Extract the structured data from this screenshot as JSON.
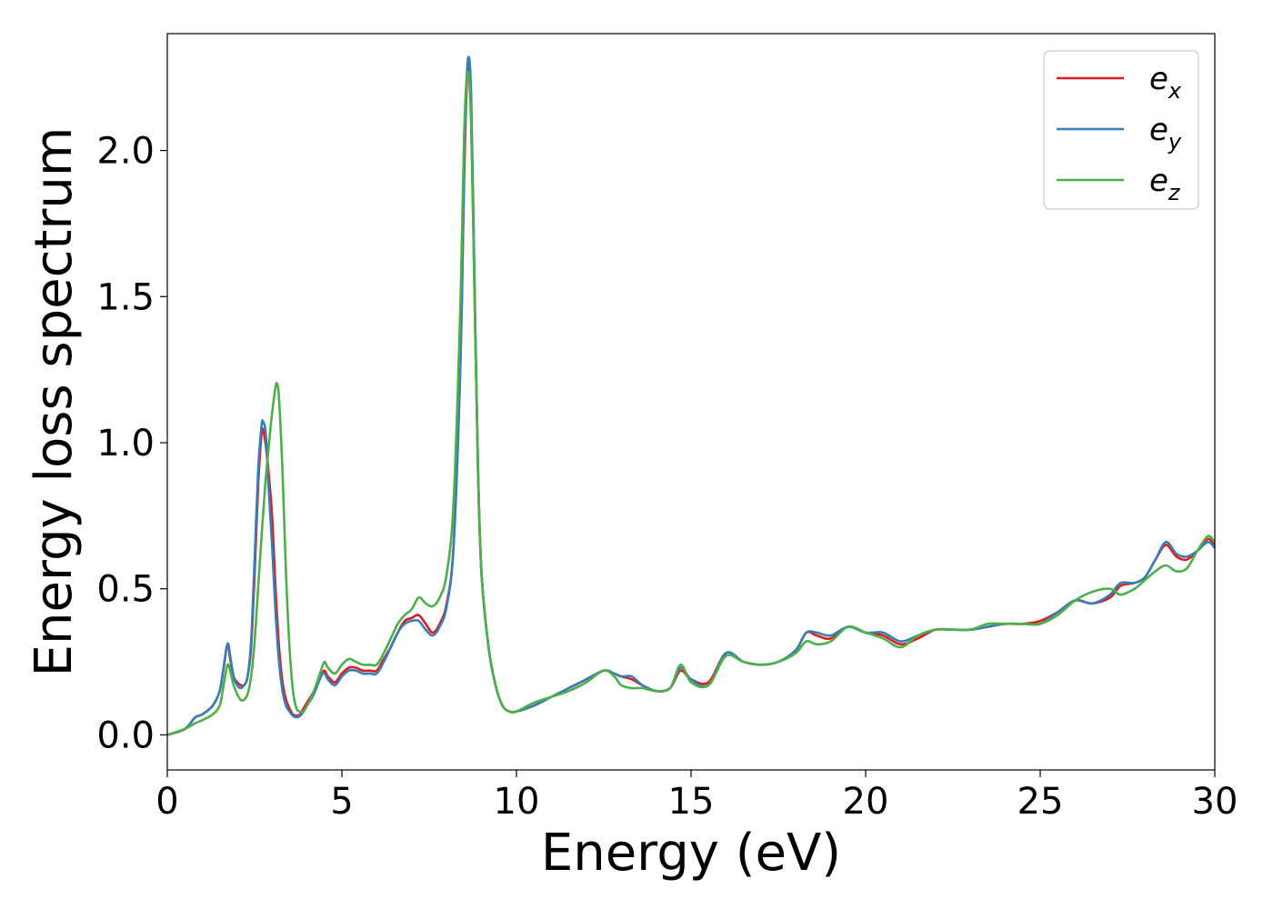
{
  "chart_data": {
    "type": "line",
    "xlabel": "Energy (eV)",
    "ylabel": "Energy loss spectrum",
    "xlim": [
      0,
      30
    ],
    "ylim": [
      -0.12,
      2.4
    ],
    "xticks": [
      0,
      5,
      10,
      15,
      20,
      25,
      30
    ],
    "xtick_labels": [
      "0",
      "5",
      "10",
      "15",
      "20",
      "25",
      "30"
    ],
    "yticks": [
      0.0,
      0.5,
      1.0,
      1.5,
      2.0
    ],
    "ytick_labels": [
      "0.0",
      "0.5",
      "1.0",
      "1.5",
      "2.0"
    ],
    "grid": false,
    "legend_position": "top-right",
    "series": [
      {
        "name": "e_x",
        "label_base": "e",
        "label_sub": "x",
        "color": "#e41a1c",
        "x": [
          0,
          0.5,
          0.8,
          1.0,
          1.3,
          1.5,
          1.6,
          1.7,
          1.75,
          1.8,
          1.9,
          2.0,
          2.1,
          2.2,
          2.3,
          2.4,
          2.5,
          2.6,
          2.7,
          2.75,
          2.8,
          2.85,
          2.9,
          3.0,
          3.1,
          3.2,
          3.3,
          3.4,
          3.5,
          3.6,
          3.7,
          3.8,
          3.9,
          4.0,
          4.2,
          4.4,
          4.5,
          4.6,
          4.8,
          5.0,
          5.2,
          5.4,
          5.6,
          5.8,
          6.0,
          6.2,
          6.4,
          6.6,
          6.8,
          7.0,
          7.2,
          7.4,
          7.6,
          7.8,
          8.0,
          8.2,
          8.4,
          8.5,
          8.6,
          8.7,
          8.8,
          8.9,
          9.0,
          9.2,
          9.4,
          9.6,
          9.8,
          10.0,
          10.5,
          11.0,
          11.5,
          12.0,
          12.5,
          12.8,
          13.0,
          13.3,
          13.6,
          14.0,
          14.4,
          14.7,
          15.0,
          15.5,
          16.0,
          16.5,
          17.0,
          17.5,
          18.0,
          18.3,
          18.6,
          19.0,
          19.5,
          20.0,
          20.5,
          21.0,
          21.5,
          22.0,
          22.5,
          23.0,
          23.5,
          24.0,
          24.5,
          25.0,
          25.5,
          26.0,
          26.5,
          27.0,
          27.3,
          27.7,
          28.0,
          28.3,
          28.6,
          28.9,
          29.2,
          29.5,
          29.8,
          30.0
        ],
        "y": [
          0.0,
          0.02,
          0.06,
          0.07,
          0.1,
          0.15,
          0.22,
          0.3,
          0.3,
          0.26,
          0.2,
          0.18,
          0.17,
          0.17,
          0.2,
          0.3,
          0.55,
          0.85,
          1.03,
          1.04,
          1.01,
          0.96,
          0.9,
          0.75,
          0.5,
          0.3,
          0.18,
          0.12,
          0.09,
          0.07,
          0.065,
          0.07,
          0.09,
          0.11,
          0.15,
          0.2,
          0.22,
          0.2,
          0.18,
          0.21,
          0.23,
          0.23,
          0.22,
          0.22,
          0.22,
          0.26,
          0.3,
          0.35,
          0.39,
          0.4,
          0.41,
          0.38,
          0.35,
          0.38,
          0.45,
          0.65,
          1.3,
          1.9,
          2.28,
          2.15,
          1.5,
          0.9,
          0.55,
          0.3,
          0.17,
          0.1,
          0.08,
          0.08,
          0.1,
          0.13,
          0.16,
          0.19,
          0.22,
          0.21,
          0.2,
          0.19,
          0.17,
          0.15,
          0.16,
          0.22,
          0.19,
          0.18,
          0.28,
          0.25,
          0.24,
          0.25,
          0.29,
          0.35,
          0.34,
          0.33,
          0.37,
          0.35,
          0.34,
          0.31,
          0.33,
          0.36,
          0.36,
          0.36,
          0.37,
          0.38,
          0.38,
          0.39,
          0.42,
          0.46,
          0.45,
          0.47,
          0.51,
          0.52,
          0.54,
          0.6,
          0.65,
          0.61,
          0.6,
          0.63,
          0.67,
          0.65
        ]
      },
      {
        "name": "e_y",
        "label_base": "e",
        "label_sub": "y",
        "color": "#377eb8",
        "x": [
          0,
          0.5,
          0.8,
          1.0,
          1.3,
          1.5,
          1.6,
          1.7,
          1.75,
          1.8,
          1.9,
          2.0,
          2.1,
          2.2,
          2.3,
          2.4,
          2.5,
          2.6,
          2.7,
          2.75,
          2.8,
          2.85,
          2.9,
          3.0,
          3.1,
          3.2,
          3.3,
          3.4,
          3.5,
          3.6,
          3.7,
          3.8,
          3.9,
          4.0,
          4.2,
          4.4,
          4.5,
          4.6,
          4.8,
          5.0,
          5.2,
          5.4,
          5.6,
          5.8,
          6.0,
          6.2,
          6.4,
          6.6,
          6.8,
          7.0,
          7.2,
          7.4,
          7.6,
          7.8,
          8.0,
          8.2,
          8.4,
          8.5,
          8.6,
          8.7,
          8.8,
          8.9,
          9.0,
          9.2,
          9.4,
          9.6,
          9.8,
          10.0,
          10.5,
          11.0,
          11.5,
          12.0,
          12.5,
          12.8,
          13.0,
          13.3,
          13.6,
          14.0,
          14.4,
          14.7,
          15.0,
          15.5,
          16.0,
          16.5,
          17.0,
          17.5,
          18.0,
          18.3,
          18.6,
          19.0,
          19.5,
          20.0,
          20.5,
          21.0,
          21.5,
          22.0,
          22.5,
          23.0,
          23.5,
          24.0,
          24.5,
          25.0,
          25.5,
          26.0,
          26.5,
          27.0,
          27.3,
          27.7,
          28.0,
          28.3,
          28.6,
          28.9,
          29.2,
          29.5,
          29.8,
          30.0
        ],
        "y": [
          0.0,
          0.02,
          0.06,
          0.07,
          0.1,
          0.15,
          0.22,
          0.3,
          0.31,
          0.27,
          0.2,
          0.17,
          0.16,
          0.17,
          0.2,
          0.32,
          0.6,
          0.9,
          1.06,
          1.07,
          1.05,
          0.98,
          0.85,
          0.65,
          0.42,
          0.25,
          0.15,
          0.1,
          0.08,
          0.065,
          0.06,
          0.065,
          0.08,
          0.1,
          0.14,
          0.2,
          0.21,
          0.19,
          0.17,
          0.2,
          0.22,
          0.22,
          0.21,
          0.21,
          0.21,
          0.25,
          0.3,
          0.35,
          0.38,
          0.39,
          0.39,
          0.36,
          0.34,
          0.37,
          0.44,
          0.65,
          1.3,
          1.95,
          2.3,
          2.2,
          1.55,
          0.9,
          0.55,
          0.3,
          0.17,
          0.1,
          0.08,
          0.08,
          0.1,
          0.13,
          0.16,
          0.19,
          0.22,
          0.21,
          0.2,
          0.2,
          0.17,
          0.15,
          0.16,
          0.23,
          0.19,
          0.17,
          0.28,
          0.25,
          0.24,
          0.25,
          0.29,
          0.35,
          0.35,
          0.34,
          0.37,
          0.35,
          0.35,
          0.32,
          0.34,
          0.36,
          0.36,
          0.36,
          0.37,
          0.38,
          0.38,
          0.38,
          0.42,
          0.46,
          0.45,
          0.48,
          0.52,
          0.52,
          0.54,
          0.6,
          0.66,
          0.62,
          0.61,
          0.63,
          0.66,
          0.64
        ]
      },
      {
        "name": "e_z",
        "label_base": "e",
        "label_sub": "z",
        "color": "#4daf4a",
        "x": [
          0,
          0.5,
          0.8,
          1.0,
          1.3,
          1.5,
          1.6,
          1.7,
          1.75,
          1.8,
          1.9,
          2.0,
          2.1,
          2.2,
          2.3,
          2.4,
          2.5,
          2.6,
          2.7,
          2.8,
          2.9,
          3.0,
          3.1,
          3.15,
          3.2,
          3.3,
          3.4,
          3.5,
          3.6,
          3.7,
          3.8,
          3.9,
          4.0,
          4.2,
          4.4,
          4.5,
          4.6,
          4.8,
          5.0,
          5.2,
          5.4,
          5.6,
          5.8,
          6.0,
          6.2,
          6.4,
          6.6,
          6.8,
          7.0,
          7.2,
          7.4,
          7.6,
          7.8,
          8.0,
          8.2,
          8.4,
          8.5,
          8.6,
          8.7,
          8.8,
          8.9,
          9.0,
          9.2,
          9.4,
          9.6,
          9.8,
          10.0,
          10.5,
          11.0,
          11.5,
          12.0,
          12.5,
          12.8,
          13.0,
          13.3,
          13.6,
          14.0,
          14.4,
          14.7,
          15.0,
          15.5,
          16.0,
          16.5,
          17.0,
          17.5,
          18.0,
          18.3,
          18.6,
          19.0,
          19.5,
          20.0,
          20.5,
          21.0,
          21.5,
          22.0,
          22.5,
          23.0,
          23.5,
          24.0,
          24.5,
          25.0,
          25.5,
          26.0,
          26.5,
          27.0,
          27.3,
          27.7,
          28.0,
          28.3,
          28.6,
          28.9,
          29.2,
          29.5,
          29.8,
          30.0
        ],
        "y": [
          0.0,
          0.02,
          0.04,
          0.05,
          0.07,
          0.1,
          0.16,
          0.23,
          0.24,
          0.22,
          0.17,
          0.14,
          0.12,
          0.12,
          0.14,
          0.2,
          0.32,
          0.5,
          0.68,
          0.85,
          0.98,
          1.1,
          1.19,
          1.2,
          1.15,
          0.9,
          0.55,
          0.3,
          0.15,
          0.09,
          0.08,
          0.08,
          0.1,
          0.15,
          0.22,
          0.25,
          0.23,
          0.21,
          0.24,
          0.26,
          0.25,
          0.24,
          0.24,
          0.24,
          0.28,
          0.33,
          0.38,
          0.41,
          0.43,
          0.47,
          0.45,
          0.44,
          0.47,
          0.55,
          0.8,
          1.5,
          2.05,
          2.27,
          2.1,
          1.5,
          0.9,
          0.55,
          0.3,
          0.17,
          0.1,
          0.08,
          0.08,
          0.11,
          0.13,
          0.15,
          0.18,
          0.22,
          0.2,
          0.17,
          0.16,
          0.16,
          0.15,
          0.16,
          0.24,
          0.18,
          0.17,
          0.27,
          0.25,
          0.24,
          0.25,
          0.28,
          0.32,
          0.31,
          0.32,
          0.37,
          0.35,
          0.33,
          0.3,
          0.34,
          0.36,
          0.36,
          0.36,
          0.38,
          0.38,
          0.38,
          0.38,
          0.41,
          0.46,
          0.49,
          0.5,
          0.48,
          0.5,
          0.53,
          0.56,
          0.58,
          0.56,
          0.57,
          0.63,
          0.68,
          0.66
        ]
      }
    ]
  }
}
